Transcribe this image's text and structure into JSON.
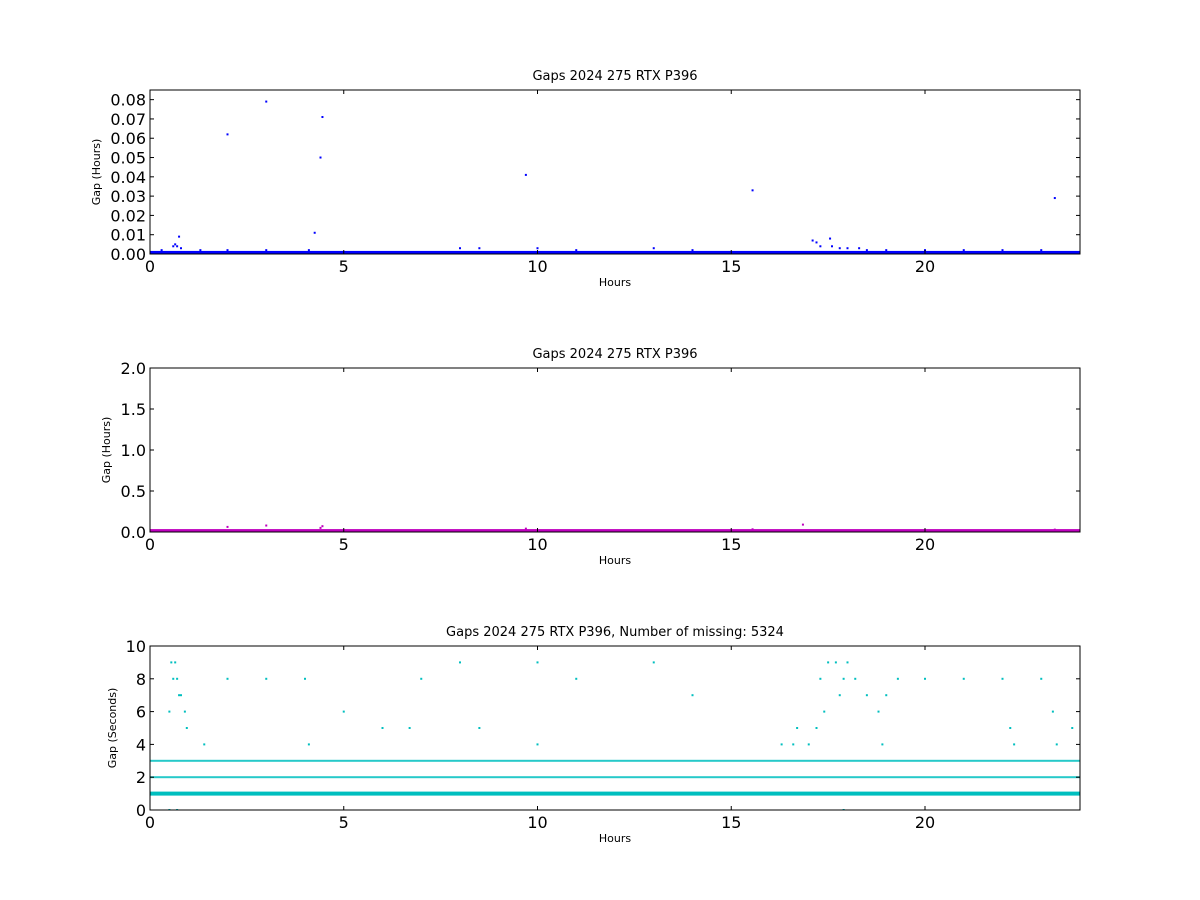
{
  "chart_data": [
    {
      "type": "scatter",
      "title": "Gaps 2024 275 RTX  P396",
      "xlabel": "Hours",
      "ylabel": "Gap (Hours)",
      "xlim": [
        0,
        24
      ],
      "ylim": [
        0,
        0.085
      ],
      "xticks": [
        "0",
        "5",
        "10",
        "15",
        "20"
      ],
      "xtick_values": [
        0,
        5,
        10,
        15,
        20
      ],
      "yticks": [
        "0.00",
        "0.01",
        "0.02",
        "0.03",
        "0.04",
        "0.05",
        "0.06",
        "0.07",
        "0.08"
      ],
      "ytick_values": [
        0,
        0.01,
        0.02,
        0.03,
        0.04,
        0.05,
        0.06,
        0.07,
        0.08
      ],
      "color": "#0000ff",
      "series": [
        {
          "baseline": {
            "x_start": 0,
            "x_end": 24,
            "y": 0.0003
          },
          "x": [
            2.0,
            3.0,
            4.45,
            4.4,
            9.7,
            4.25,
            15.55,
            23.35,
            0.6,
            0.65,
            0.7,
            0.8,
            0.75,
            17.1,
            17.2,
            17.55,
            17.3,
            17.6,
            18.3,
            18.5,
            0.3,
            1.3,
            2.0,
            3.0,
            4.1,
            8.5,
            8.0,
            10.0,
            11.0,
            13.0,
            14.0,
            17.8,
            18.0,
            19.0,
            20.0,
            21.0,
            22.0,
            23.0
          ],
          "y": [
            0.062,
            0.079,
            0.071,
            0.05,
            0.041,
            0.011,
            0.033,
            0.029,
            0.004,
            0.005,
            0.004,
            0.003,
            0.009,
            0.007,
            0.006,
            0.008,
            0.004,
            0.004,
            0.003,
            0.002,
            0.002,
            0.002,
            0.002,
            0.002,
            0.002,
            0.003,
            0.003,
            0.003,
            0.002,
            0.003,
            0.002,
            0.003,
            0.003,
            0.002,
            0.002,
            0.002,
            0.002,
            0.002
          ]
        }
      ]
    },
    {
      "type": "scatter",
      "title": "Gaps 2024 275 RTX  P396",
      "xlabel": "Hours",
      "ylabel": "Gap (Hours)",
      "xlim": [
        0,
        24
      ],
      "ylim": [
        0,
        2.0
      ],
      "xticks": [
        "0",
        "5",
        "10",
        "15",
        "20"
      ],
      "xtick_values": [
        0,
        5,
        10,
        15,
        20
      ],
      "yticks": [
        "0.0",
        "0.5",
        "1.0",
        "1.5",
        "2.0"
      ],
      "ytick_values": [
        0,
        0.5,
        1.0,
        1.5,
        2.0
      ],
      "color": "#bf00bf",
      "series": [
        {
          "baseline": {
            "x_start": 0,
            "x_end": 24,
            "y": 0.005
          },
          "x": [
            2.0,
            3.0,
            4.45,
            4.4,
            9.7,
            15.55,
            16.85,
            23.35
          ],
          "y": [
            0.062,
            0.079,
            0.071,
            0.05,
            0.041,
            0.033,
            0.09,
            0.029
          ]
        }
      ]
    },
    {
      "type": "scatter",
      "title": "Gaps 2024 275 RTX  P396, Number of missing: 5324",
      "xlabel": "Hours",
      "ylabel": "Gap (Seconds)",
      "xlim": [
        0,
        24
      ],
      "ylim": [
        0,
        10
      ],
      "xticks": [
        "0",
        "5",
        "10",
        "15",
        "20"
      ],
      "xtick_values": [
        0,
        5,
        10,
        15,
        20
      ],
      "yticks": [
        "0",
        "2",
        "4",
        "6",
        "8",
        "10"
      ],
      "ytick_values": [
        0,
        2,
        4,
        6,
        8,
        10
      ],
      "color": "#00bfbf",
      "series": [
        {
          "level_bands": [
            {
              "y": 1,
              "x_start": 0,
              "x_end": 24
            },
            {
              "y": 2,
              "x_start": 0,
              "x_end": 24
            },
            {
              "y": 3,
              "x_start": 0,
              "x_end": 24
            }
          ],
          "x": [
            0.55,
            0.65,
            0.6,
            0.7,
            0.75,
            0.8,
            0.5,
            0.9,
            0.95,
            2.0,
            3.0,
            4.0,
            7.0,
            8.0,
            10.0,
            11.0,
            13.0,
            14.0,
            17.3,
            17.5,
            17.7,
            17.8,
            17.9,
            18.0,
            18.2,
            18.5,
            19.0,
            19.3,
            20.0,
            21.0,
            22.0,
            23.0,
            5.0,
            6.0,
            6.7,
            8.5,
            16.7,
            17.2,
            17.4,
            18.8,
            22.2,
            23.3,
            23.8,
            1.4,
            4.1,
            10.0,
            16.3,
            16.6,
            17.0,
            18.9,
            22.3,
            23.4,
            0.5,
            0.7,
            17.9
          ],
          "y": [
            9,
            9,
            8,
            8,
            7,
            7,
            6,
            6,
            5,
            8,
            8,
            8,
            8,
            9,
            9,
            8,
            9,
            7,
            8,
            9,
            9,
            7,
            8,
            9,
            8,
            7,
            7,
            8,
            8,
            8,
            8,
            8,
            6,
            5,
            5,
            5,
            5,
            5,
            6,
            6,
            5,
            6,
            5,
            4,
            4,
            4,
            4,
            4,
            4,
            4,
            4,
            4,
            0,
            0,
            0
          ]
        }
      ]
    }
  ]
}
